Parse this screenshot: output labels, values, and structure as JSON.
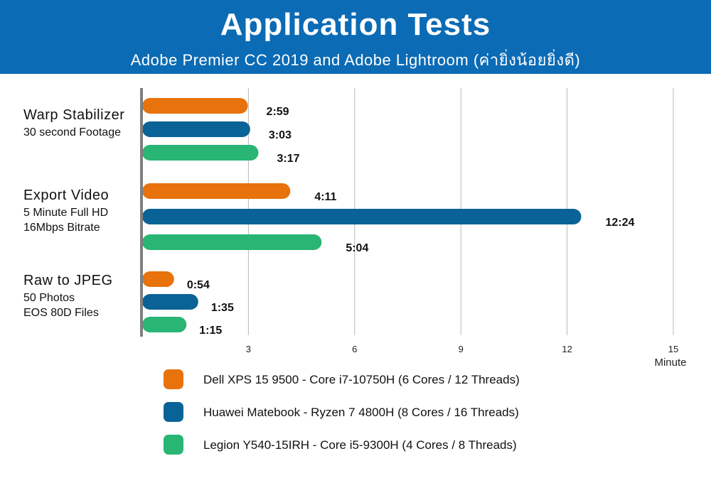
{
  "header": {
    "title": "Application Tests",
    "subtitle": "Adobe Premier CC 2019 and Adobe Lightroom (ค่ายิ่งน้อยยิ่งดี)"
  },
  "chart_data": {
    "type": "bar",
    "orientation": "horizontal",
    "xlabel": "Minute",
    "xlim": [
      0,
      15
    ],
    "xticks": [
      3,
      6,
      9,
      12,
      15
    ],
    "grid": true,
    "groups": [
      {
        "label": "Warp Stabilizer",
        "sublabel": [
          "30 second Footage"
        ]
      },
      {
        "label": "Export Video",
        "sublabel": [
          "5 Minute Full HD",
          "16Mbps Bitrate"
        ]
      },
      {
        "label": "Raw to JPEG",
        "sublabel": [
          "50 Photos",
          "EOS 80D Files"
        ]
      }
    ],
    "series": [
      {
        "name": "Dell XPS 15 9500 -  Core i7-10750H (6 Cores / 12 Threads)",
        "color": "#e8720c",
        "values": [
          2.983,
          4.183,
          0.9
        ],
        "labels": [
          "2:59",
          "4:11",
          "0:54"
        ]
      },
      {
        "name": "Huawei Matebook - Ryzen 7 4800H (8 Cores / 16 Threads)",
        "color": "#0a6396",
        "values": [
          3.05,
          12.4,
          1.583
        ],
        "labels": [
          "3:03",
          "12:24",
          "1:35"
        ]
      },
      {
        "name": "Legion Y540-15IRH - Core i5-9300H (4 Cores / 8 Threads)",
        "color": "#29b573",
        "values": [
          3.283,
          5.067,
          1.25
        ],
        "labels": [
          "3:17",
          "5:04",
          "1:15"
        ]
      }
    ],
    "legend_position": "bottom"
  }
}
